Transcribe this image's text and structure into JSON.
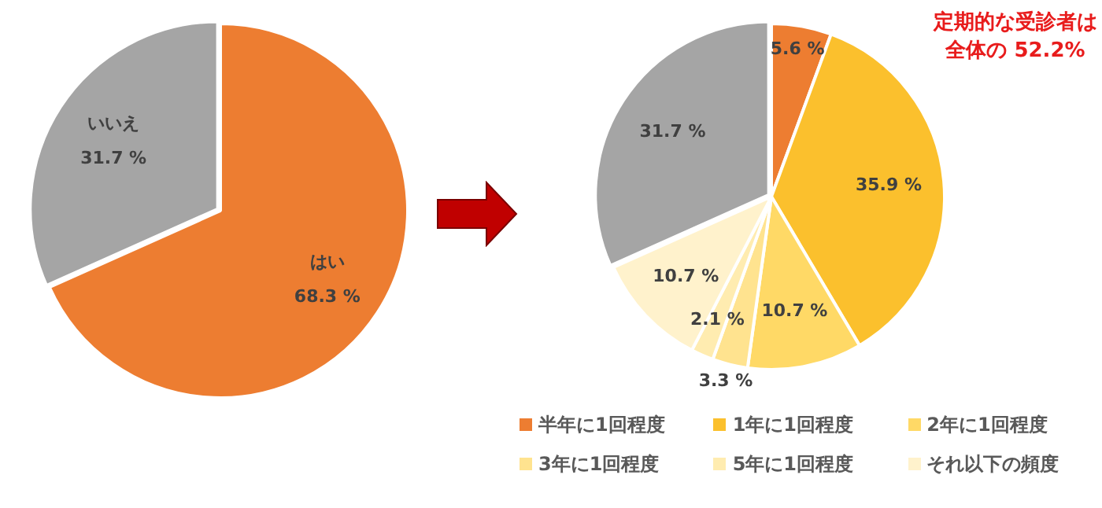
{
  "chart_data": [
    {
      "type": "pie",
      "categories": [
        "はい",
        "いいえ"
      ],
      "values": [
        68.3,
        31.7
      ],
      "colors": [
        "#ed7d31",
        "#a5a5a5"
      ],
      "value_labels": [
        "68.3 %",
        "31.7 %"
      ]
    },
    {
      "type": "pie",
      "categories": [
        "半年に1回程度",
        "1年に1回程度",
        "2年に1回程度",
        "3年に1回程度",
        "5年に1回程度",
        "それ以下の頻度",
        null
      ],
      "values": [
        5.6,
        35.9,
        10.7,
        3.3,
        2.1,
        10.7,
        31.7
      ],
      "colors": [
        "#ed7d31",
        "#fbc02d",
        "#ffd966",
        "#ffe38f",
        "#ffecb0",
        "#fff2cc",
        "#a5a5a5"
      ],
      "value_labels": [
        "5.6 %",
        "35.9 %",
        "10.7 %",
        "3.3 %",
        "2.1 %",
        "10.7 %",
        "31.7 %"
      ],
      "legend": "bottom",
      "annotations": [
        "定期的な受診者は全体の 52.2%"
      ]
    }
  ]
}
